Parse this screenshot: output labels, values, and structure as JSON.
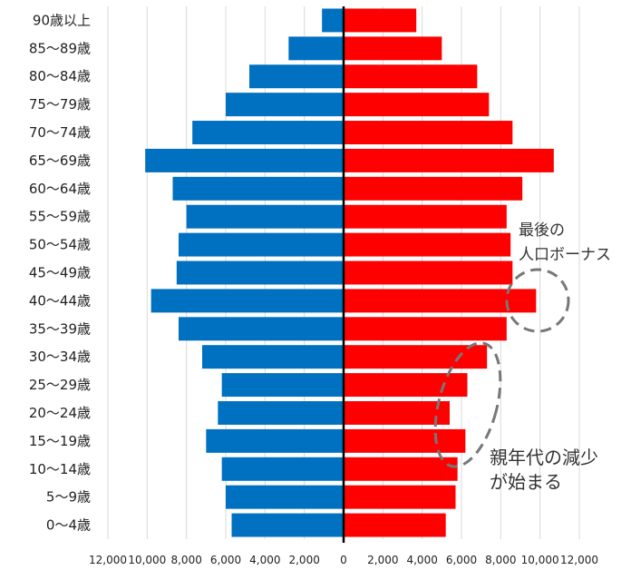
{
  "chart_data": {
    "type": "bar",
    "orientation": "horizontal",
    "layout": "population-pyramid",
    "categories": [
      "0～4歳",
      "5～9歳",
      "10～14歳",
      "15～19歳",
      "20～24歳",
      "25～29歳",
      "30～34歳",
      "35～39歳",
      "40～44歳",
      "45～49歳",
      "50～54歳",
      "55～59歳",
      "60～64歳",
      "65～69歳",
      "70～74歳",
      "75～79歳",
      "80～84歳",
      "85～89歳",
      "90歳以上"
    ],
    "series": [
      {
        "side": "left",
        "color": "#0070c0",
        "values": [
          5700,
          6000,
          6200,
          7000,
          6400,
          6200,
          7200,
          8400,
          9800,
          8500,
          8400,
          8000,
          8700,
          10100,
          7700,
          6000,
          4800,
          2800,
          1100
        ]
      },
      {
        "side": "right",
        "color": "#ff0000",
        "values": [
          5200,
          5700,
          5800,
          6200,
          5400,
          6300,
          7300,
          8300,
          9800,
          8600,
          8500,
          8300,
          9100,
          10700,
          8600,
          7400,
          6800,
          5000,
          3700
        ]
      }
    ],
    "xlim": [
      -12000,
      12000
    ],
    "xticks": [
      -12000,
      -10000,
      -8000,
      -6000,
      -4000,
      -2000,
      0,
      2000,
      4000,
      6000,
      8000,
      10000,
      12000
    ],
    "xtick_labels": [
      "12,000",
      "10,000",
      "8,000",
      "6,000",
      "4,000",
      "2,000",
      "0",
      "2,000",
      "4,000",
      "6,000",
      "8,000",
      "10,000",
      "12,000"
    ],
    "grid": "vertical",
    "annotations": [
      {
        "id": "bonus",
        "lines": [
          "最後の",
          "人口ボーナス"
        ],
        "target": "40～44歳",
        "shape": "dashed-circle"
      },
      {
        "id": "decline",
        "lines": [
          "親年代の減少",
          "が始まる"
        ],
        "target": "15～34歳",
        "shape": "dashed-ellipse"
      }
    ]
  }
}
